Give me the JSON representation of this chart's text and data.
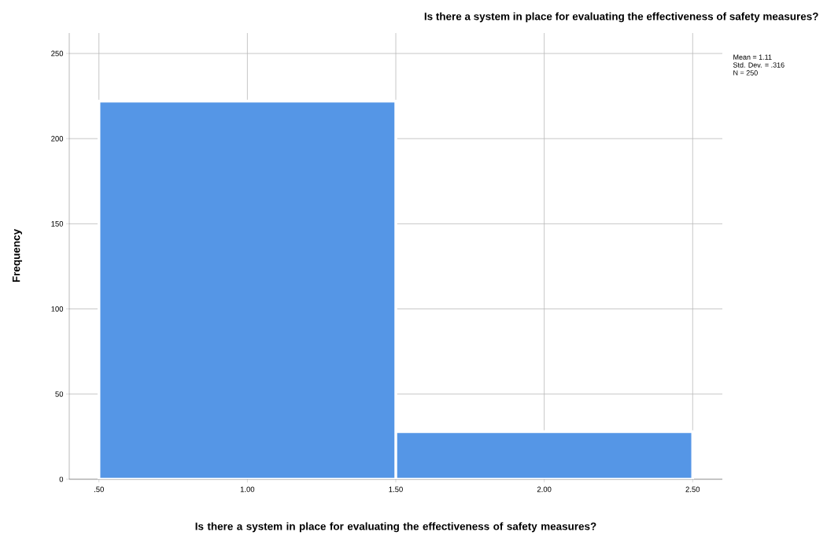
{
  "chart_data": {
    "type": "histogram",
    "title": "Is there a system in place for evaluating the effectiveness of safety measures?",
    "xlabel": "Is there a system in place for evaluating the effectiveness of safety measures?",
    "ylabel": "Frequency",
    "bins": [
      0.5,
      1.5,
      2.5
    ],
    "values": [
      222,
      28
    ],
    "color": "#5596e6",
    "xlim": [
      0.4,
      2.6
    ],
    "ylim": [
      0,
      262
    ],
    "xticks": [
      {
        "value": 0.5,
        "label": ".50"
      },
      {
        "value": 1.0,
        "label": "1.00"
      },
      {
        "value": 1.5,
        "label": "1.50"
      },
      {
        "value": 2.0,
        "label": "2.00"
      },
      {
        "value": 2.5,
        "label": "2.50"
      }
    ],
    "yticks": [
      0,
      50,
      100,
      150,
      200,
      250
    ],
    "grid": true,
    "annotations": [
      "Mean = 1.11",
      "Std. Dev. = .316",
      "N = 250"
    ]
  }
}
